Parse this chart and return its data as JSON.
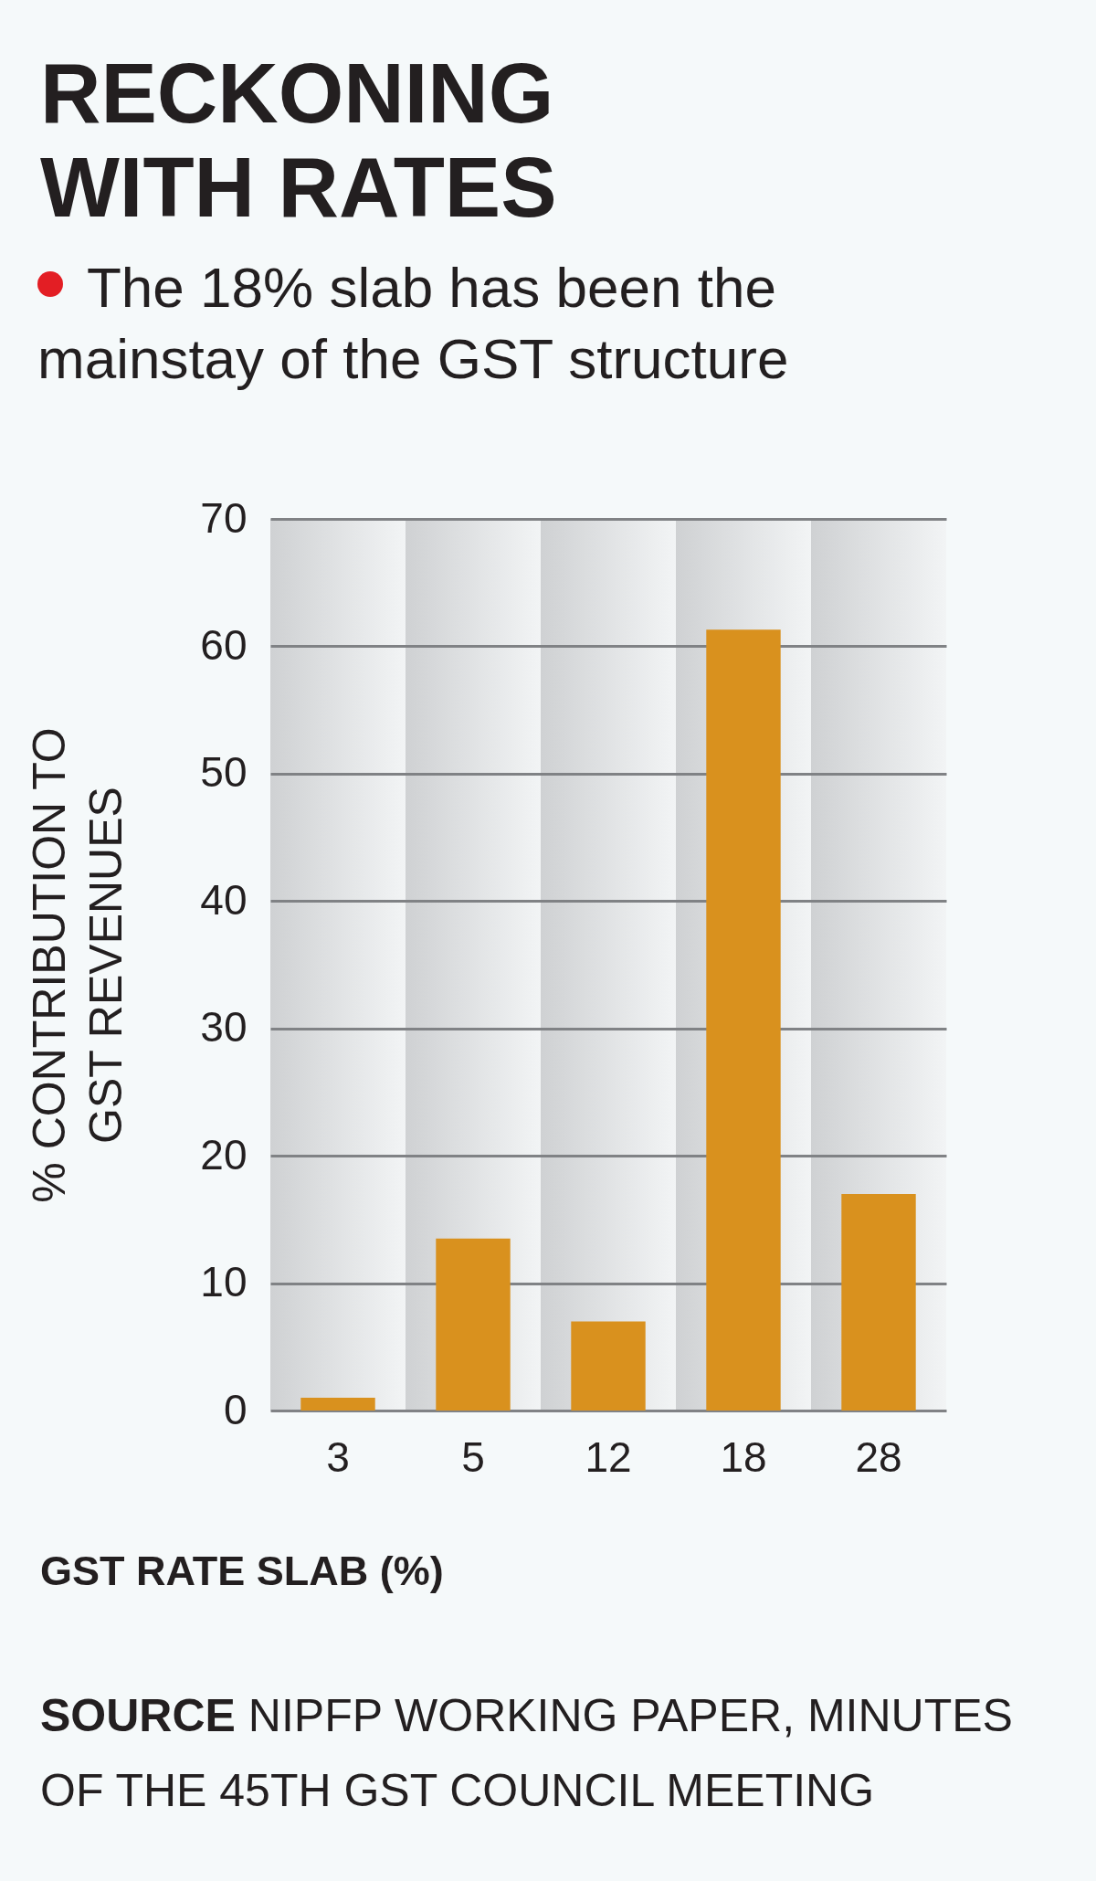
{
  "chart_data": {
    "type": "bar",
    "title": "RECKONING WITH RATES",
    "subtitle": "The 18% slab has been the mainstay of the GST structure",
    "xlabel": "GST RATE SLAB (%)",
    "ylabel": "% CONTRIBUTION TO GST REVENUES",
    "annotations": [
      "SOURCE NIPFP WORKING PAPER, MINUTES OF THE 45TH GST COUNCIL MEETING"
    ],
    "categories": [
      "3",
      "5",
      "12",
      "18",
      "28"
    ],
    "values": [
      1,
      13.5,
      7,
      61.3,
      17
    ],
    "color": "#d9911e",
    "ylim": [
      0,
      70
    ],
    "yticks": [
      0,
      10,
      20,
      30,
      40,
      50,
      60,
      70
    ],
    "grid": "y"
  }
}
